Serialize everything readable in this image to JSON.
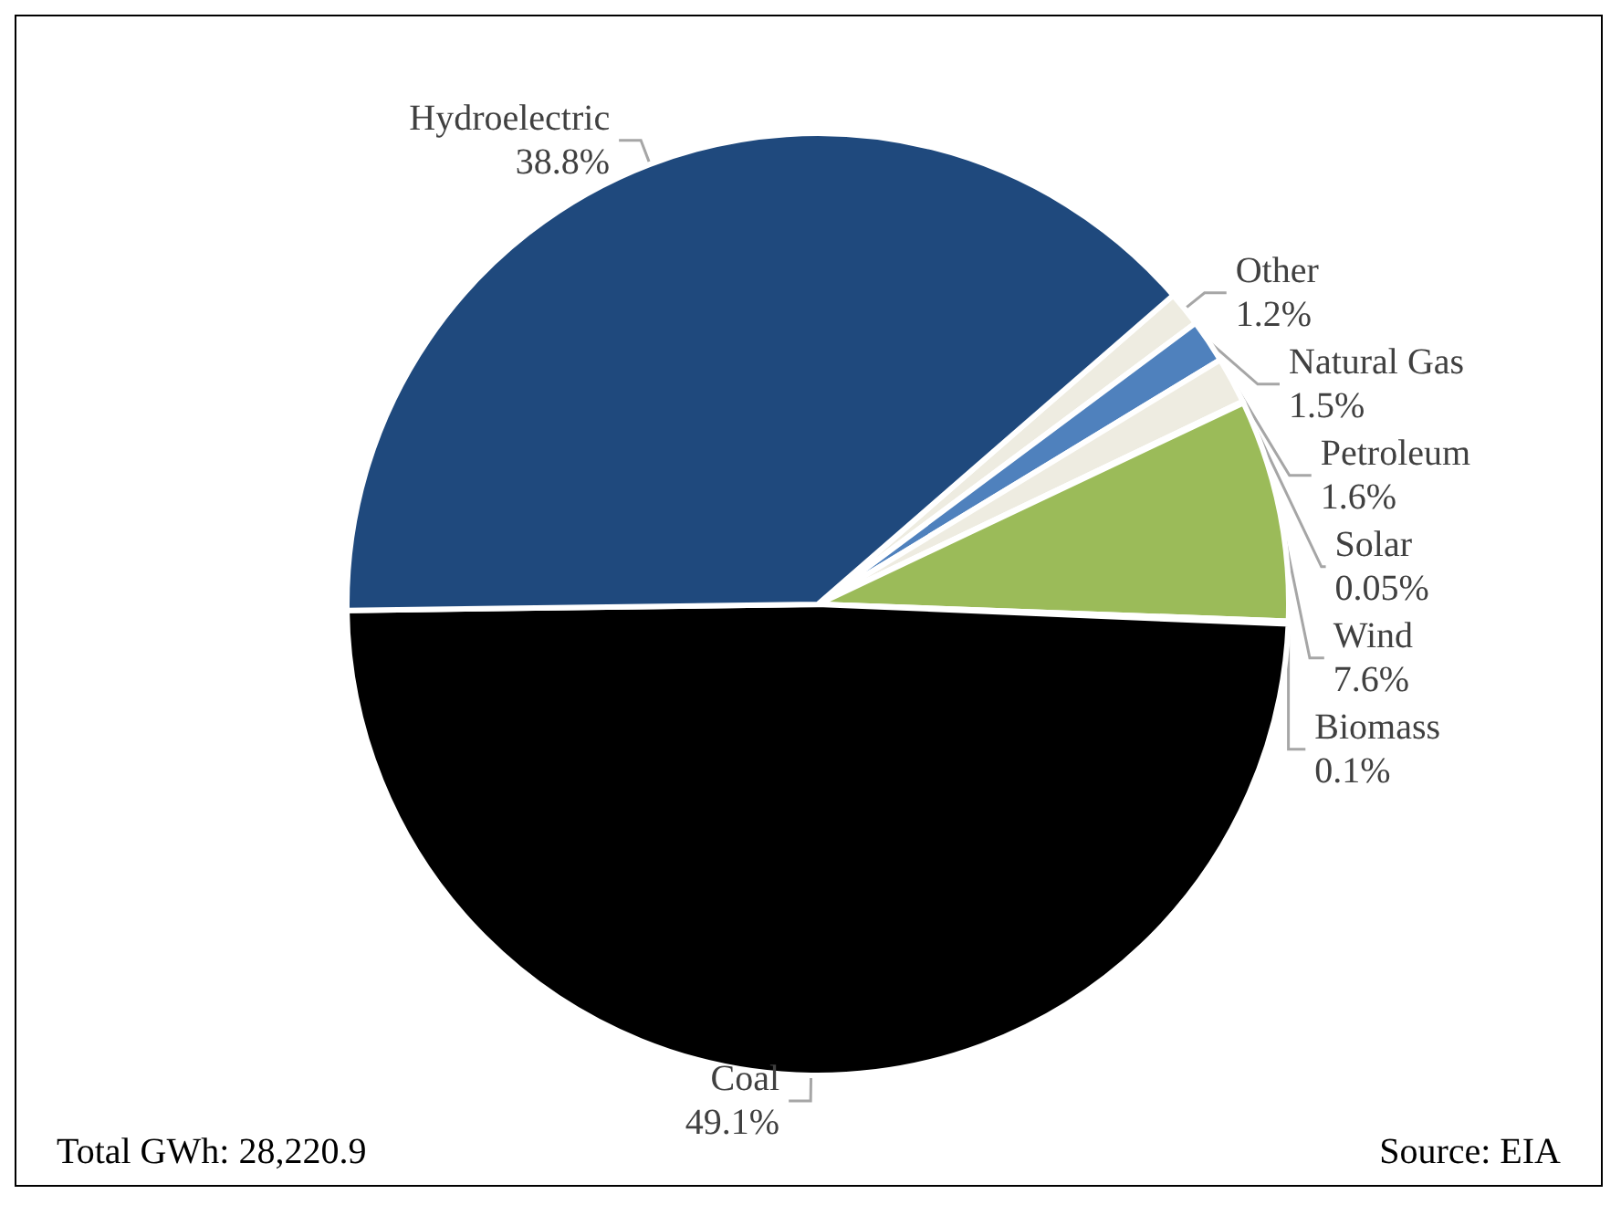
{
  "chart_data": {
    "type": "pie",
    "categories": [
      "Other",
      "Natural Gas",
      "Petroleum",
      "Solar",
      "Wind",
      "Biomass",
      "Coal",
      "Hydroelectric"
    ],
    "values": [
      1.2,
      1.5,
      1.6,
      0.05,
      7.6,
      0.1,
      49.1,
      38.8
    ],
    "value_labels": [
      "1.2%",
      "1.5%",
      "1.6%",
      "0.05%",
      "7.6%",
      "0.1%",
      "49.1%",
      "38.8%"
    ],
    "colors": [
      "#eeece1",
      "#4f81bd",
      "#eeece1",
      "#eeece1",
      "#9bbb59",
      "#eeece1",
      "#000000",
      "#1f497d"
    ],
    "legend": false,
    "annotations": [
      "Total GWh: 28,220.9",
      "Source: EIA"
    ]
  }
}
